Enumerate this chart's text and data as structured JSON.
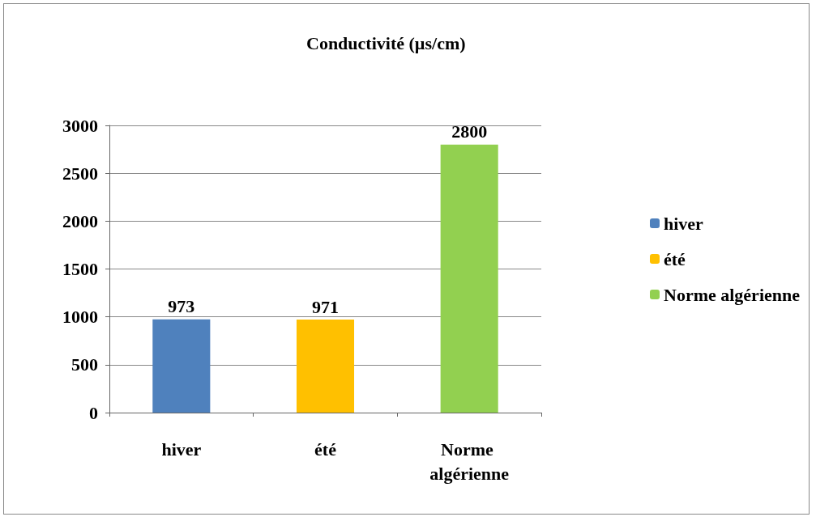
{
  "chart_data": {
    "type": "bar",
    "title": "Conductivité (µs/cm)",
    "categories": [
      "hiver",
      "été",
      "Norme algérienne"
    ],
    "series": [
      {
        "name": "hiver",
        "color": "#4f81bd",
        "values": [
          973,
          null,
          null
        ]
      },
      {
        "name": "été",
        "color": "#ffc000",
        "values": [
          null,
          971,
          null
        ]
      },
      {
        "name": "Norme algérienne",
        "color": "#92d050",
        "values": [
          null,
          null,
          2800
        ]
      }
    ],
    "ylim": [
      0,
      3000
    ],
    "yticks": [
      0,
      500,
      1000,
      1500,
      2000,
      2500,
      3000
    ],
    "grid": "y",
    "legend": "right",
    "data_labels": true
  }
}
